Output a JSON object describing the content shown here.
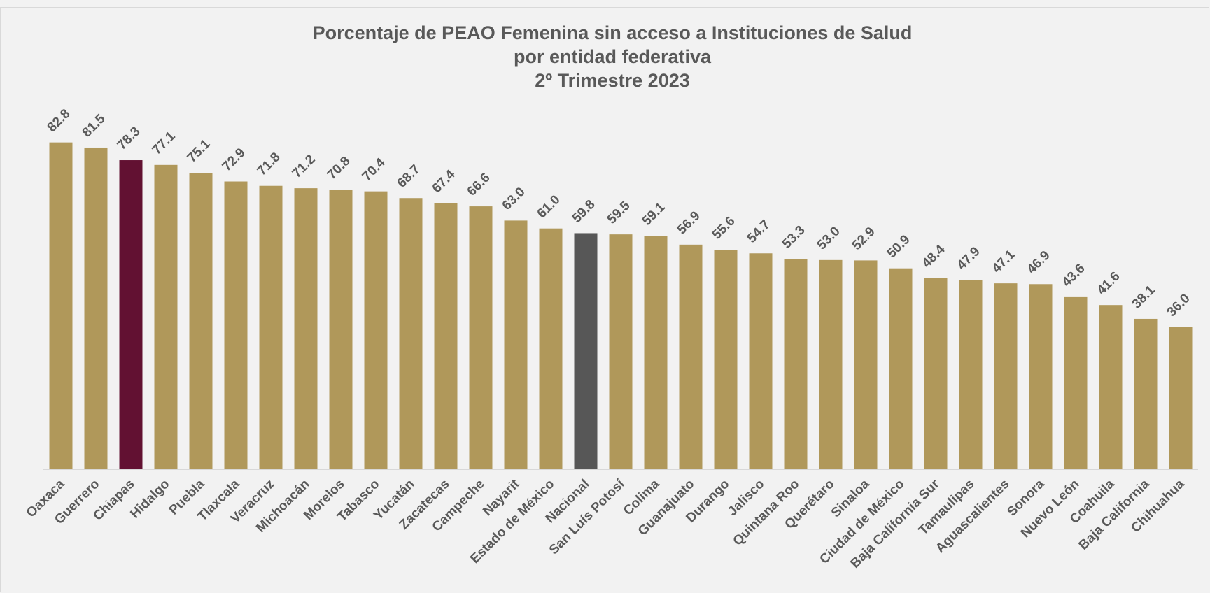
{
  "chart_data": {
    "type": "bar",
    "title": [
      "Porcentaje de PEAO Femenina sin acceso a Instituciones de Salud",
      "por entidad federativa",
      "2º Trimestre 2023"
    ],
    "categories": [
      "Oaxaca",
      "Guerrero",
      "Chiapas",
      "Hidalgo",
      "Puebla",
      "Tlaxcala",
      "Veracruz",
      "Michoacán",
      "Morelos",
      "Tabasco",
      "Yucatán",
      "Zacatecas",
      "Campeche",
      "Nayarit",
      "Estado de México",
      "Nacional",
      "San Luís Potosí",
      "Colima",
      "Guanajuato",
      "Durango",
      "Jalisco",
      "Quintana Roo",
      "Querétaro",
      "Sinaloa",
      "Ciudad de México",
      "Baja California Sur",
      "Tamaulipas",
      "Aguascalientes",
      "Sonora",
      "Nuevo León",
      "Coahuila",
      "Baja California",
      "Chihuahua"
    ],
    "values": [
      82.8,
      81.5,
      78.3,
      77.1,
      75.1,
      72.9,
      71.8,
      71.2,
      70.8,
      70.4,
      68.7,
      67.4,
      66.6,
      63.0,
      61.0,
      59.8,
      59.5,
      59.1,
      56.9,
      55.6,
      54.7,
      53.3,
      53.0,
      52.9,
      50.9,
      48.4,
      47.9,
      47.1,
      46.9,
      43.6,
      41.6,
      38.1,
      36.0
    ],
    "value_labels": [
      "82.8",
      "81.5",
      "78.3",
      "77.1",
      "75.1",
      "72.9",
      "71.8",
      "71.2",
      "70.8",
      "70.4",
      "68.7",
      "67.4",
      "66.6",
      "63.0",
      "61.0",
      "59.8",
      "59.5",
      "59.1",
      "56.9",
      "55.6",
      "54.7",
      "53.3",
      "53.0",
      "52.9",
      "50.9",
      "48.4",
      "47.9",
      "47.1",
      "46.9",
      "43.6",
      "41.6",
      "38.1",
      "36.0"
    ],
    "colors": [
      "#b0985a",
      "#b0985a",
      "#621132",
      "#b0985a",
      "#b0985a",
      "#b0985a",
      "#b0985a",
      "#b0985a",
      "#b0985a",
      "#b0985a",
      "#b0985a",
      "#b0985a",
      "#b0985a",
      "#b0985a",
      "#b0985a",
      "#575757",
      "#b0985a",
      "#b0985a",
      "#b0985a",
      "#b0985a",
      "#b0985a",
      "#b0985a",
      "#b0985a",
      "#b0985a",
      "#b0985a",
      "#b0985a",
      "#b0985a",
      "#b0985a",
      "#b0985a",
      "#b0985a",
      "#b0985a",
      "#b0985a",
      "#b0985a"
    ],
    "ylim": [
      0,
      90
    ]
  }
}
